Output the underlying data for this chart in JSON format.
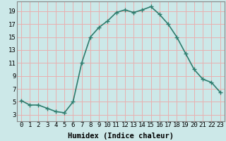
{
  "x": [
    0,
    1,
    2,
    3,
    4,
    5,
    6,
    7,
    8,
    9,
    10,
    11,
    12,
    13,
    14,
    15,
    16,
    17,
    18,
    19,
    20,
    21,
    22,
    23
  ],
  "y": [
    5.2,
    4.5,
    4.5,
    4.0,
    3.5,
    3.3,
    5.0,
    11.0,
    15.0,
    16.5,
    17.5,
    18.8,
    19.2,
    18.8,
    19.2,
    19.7,
    18.5,
    17.0,
    15.0,
    12.5,
    10.0,
    8.5,
    8.0,
    6.5
  ],
  "line_color": "#2e7d6e",
  "marker": "+",
  "marker_size": 4,
  "background_color": "#cce8e8",
  "grid_color": "#e8b0b0",
  "xlabel": "Humidex (Indice chaleur)",
  "xlim": [
    -0.5,
    23.5
  ],
  "ylim": [
    2.0,
    20.5
  ],
  "yticks": [
    3,
    5,
    7,
    9,
    11,
    13,
    15,
    17,
    19
  ],
  "xticks": [
    0,
    1,
    2,
    3,
    4,
    5,
    6,
    7,
    8,
    9,
    10,
    11,
    12,
    13,
    14,
    15,
    16,
    17,
    18,
    19,
    20,
    21,
    22,
    23
  ],
  "xlabel_fontsize": 7.5,
  "tick_fontsize": 6.5,
  "line_width": 1.2,
  "spine_color": "#888888"
}
